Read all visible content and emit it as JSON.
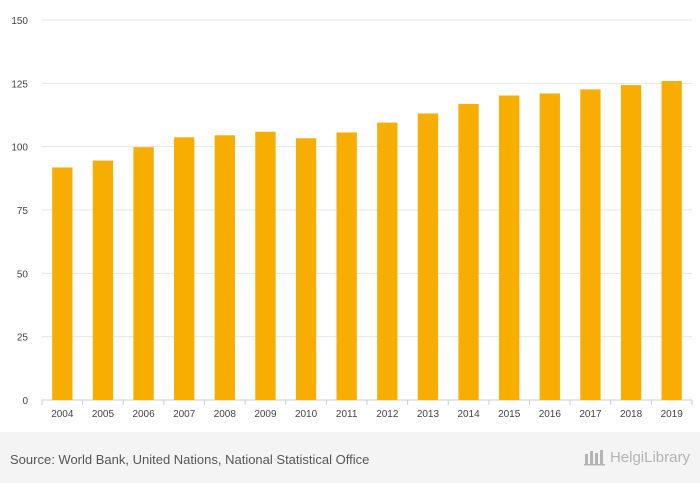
{
  "chart_data": {
    "type": "bar",
    "categories": [
      "2004",
      "2005",
      "2006",
      "2007",
      "2008",
      "2009",
      "2010",
      "2011",
      "2012",
      "2013",
      "2014",
      "2015",
      "2016",
      "2017",
      "2018",
      "2019"
    ],
    "values": [
      91.8,
      94.5,
      99.8,
      103.7,
      104.5,
      105.9,
      103.3,
      105.6,
      109.5,
      113.1,
      116.9,
      120.2,
      121.0,
      122.6,
      124.3,
      125.9
    ],
    "title": "",
    "xlabel": "",
    "ylabel": "",
    "ylim": [
      0,
      150
    ],
    "yticks": [
      0,
      25,
      50,
      75,
      100,
      125,
      150
    ],
    "grid": true,
    "bar_color": "#f7ae00",
    "grid_color": "#e5e5e5"
  },
  "footer": {
    "source": "Source: World Bank, United Nations, National Statistical Office",
    "logo_text": "HelgiLibrary",
    "logo_icon": "helgi-library-logo-icon"
  }
}
